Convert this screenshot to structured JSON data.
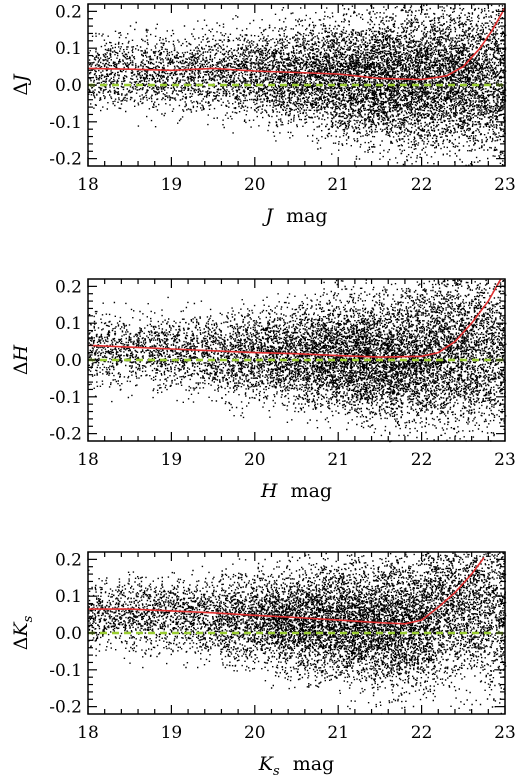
{
  "chart_data": [
    {
      "type": "scatter",
      "xlabel_var": "J",
      "xlabel_unit": "mag",
      "ylabel_prefix": "Δ",
      "ylabel_var": "J",
      "ylabel_sub": "",
      "xlim": [
        18,
        23
      ],
      "ylim": [
        -0.22,
        0.22
      ],
      "xticks": [
        "18",
        "19",
        "20",
        "21",
        "22",
        "23"
      ],
      "yticks": [
        "-0.2",
        "-0.1",
        "0.0",
        "0.1",
        "0.2"
      ],
      "reference_line": {
        "y": 0.0,
        "color": "#9acd32",
        "style": "dashed"
      },
      "trend_line": {
        "color": "#e03030",
        "x": [
          18.0,
          18.5,
          19.0,
          19.5,
          20.0,
          20.5,
          21.0,
          21.5,
          22.0,
          22.3,
          22.5,
          22.7,
          22.85,
          23.0
        ],
        "y": [
          0.045,
          0.043,
          0.04,
          0.045,
          0.038,
          0.034,
          0.03,
          0.018,
          0.015,
          0.025,
          0.05,
          0.1,
          0.15,
          0.21
        ]
      },
      "scatter": {
        "n_points": 10500,
        "x_density_peak": 22.0,
        "color": "#000000"
      }
    },
    {
      "type": "scatter",
      "xlabel_var": "H",
      "xlabel_unit": "mag",
      "ylabel_prefix": "Δ",
      "ylabel_var": "H",
      "ylabel_sub": "",
      "xlim": [
        18,
        23
      ],
      "ylim": [
        -0.22,
        0.22
      ],
      "xticks": [
        "18",
        "19",
        "20",
        "21",
        "22",
        "23"
      ],
      "yticks": [
        "-0.2",
        "-0.1",
        "0.0",
        "0.1",
        "0.2"
      ],
      "reference_line": {
        "y": 0.0,
        "color": "#9acd32",
        "style": "dashed"
      },
      "trend_line": {
        "color": "#e03030",
        "x": [
          18.0,
          18.5,
          19.0,
          19.5,
          20.0,
          20.5,
          21.0,
          21.5,
          22.0,
          22.2,
          22.4,
          22.6,
          22.8,
          22.95
        ],
        "y": [
          0.04,
          0.035,
          0.03,
          0.025,
          0.02,
          0.017,
          0.012,
          0.008,
          0.01,
          0.02,
          0.05,
          0.1,
          0.16,
          0.22
        ]
      },
      "scatter": {
        "n_points": 10000,
        "x_density_peak": 21.8,
        "color": "#000000"
      }
    },
    {
      "type": "scatter",
      "xlabel_var": "K",
      "xlabel_sub": "s",
      "xlabel_unit": "mag",
      "ylabel_prefix": "Δ",
      "ylabel_var": "K",
      "ylabel_sub": "s",
      "xlim": [
        18,
        23
      ],
      "ylim": [
        -0.22,
        0.22
      ],
      "xticks": [
        "18",
        "19",
        "20",
        "21",
        "22",
        "23"
      ],
      "yticks": [
        "-0.2",
        "-0.1",
        "0.0",
        "0.1",
        "0.2"
      ],
      "reference_line": {
        "y": 0.0,
        "color": "#9acd32",
        "style": "dashed"
      },
      "trend_line": {
        "color": "#e03030",
        "x": [
          18.0,
          18.5,
          19.0,
          19.5,
          20.0,
          20.5,
          21.0,
          21.5,
          21.8,
          22.0,
          22.2,
          22.4,
          22.6,
          22.75
        ],
        "y": [
          0.065,
          0.065,
          0.06,
          0.055,
          0.048,
          0.042,
          0.035,
          0.028,
          0.025,
          0.035,
          0.07,
          0.11,
          0.16,
          0.205
        ]
      },
      "scatter": {
        "n_points": 10000,
        "x_density_peak": 21.5,
        "color": "#000000"
      }
    }
  ]
}
